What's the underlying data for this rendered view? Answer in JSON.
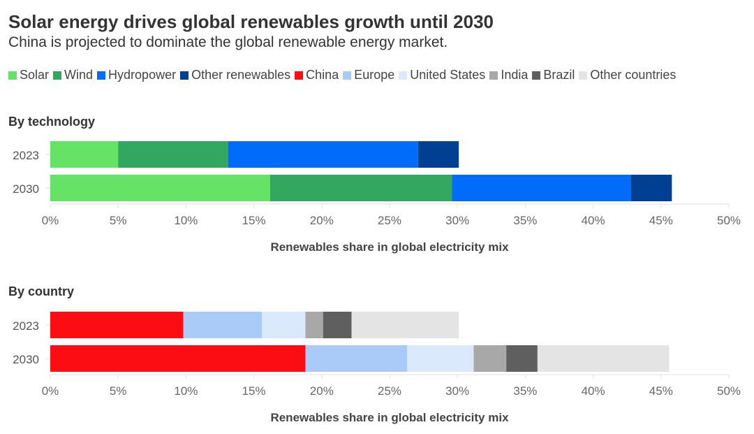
{
  "title": "Solar energy drives global renewables growth until 2030",
  "subtitle": "China is projected to dominate the global renewable energy market.",
  "legend": [
    {
      "name": "Solar",
      "color": "#66e266"
    },
    {
      "name": "Wind",
      "color": "#33a660"
    },
    {
      "name": "Hydropower",
      "color": "#006cf9"
    },
    {
      "name": "Other renewables",
      "color": "#003f91"
    },
    {
      "name": "China",
      "color": "#fc0d13"
    },
    {
      "name": "Europe",
      "color": "#aacbf8"
    },
    {
      "name": "United States",
      "color": "#dae9fc"
    },
    {
      "name": "India",
      "color": "#a8a8a8"
    },
    {
      "name": "Brazil",
      "color": "#5f5f5f"
    },
    {
      "name": "Other countries",
      "color": "#e4e4e4"
    }
  ],
  "chart_data": [
    {
      "type": "bar",
      "orientation": "horizontal",
      "stacked": true,
      "title": "By technology",
      "categories": [
        "2023",
        "2030"
      ],
      "xlabel": "Renewables share in global electricity mix",
      "xlim": [
        0,
        50
      ],
      "xticks": [
        "0%",
        "5%",
        "10%",
        "15%",
        "20%",
        "25%",
        "30%",
        "35%",
        "40%",
        "45%",
        "50%"
      ],
      "series": [
        {
          "name": "Solar",
          "color": "#66e266",
          "values": [
            5.0,
            16.2
          ]
        },
        {
          "name": "Wind",
          "color": "#33a660",
          "values": [
            8.1,
            13.4
          ]
        },
        {
          "name": "Hydropower",
          "color": "#006cf9",
          "values": [
            14.0,
            13.2
          ]
        },
        {
          "name": "Other renewables",
          "color": "#003f91",
          "values": [
            3.0,
            3.0
          ]
        }
      ]
    },
    {
      "type": "bar",
      "orientation": "horizontal",
      "stacked": true,
      "title": "By country",
      "categories": [
        "2023",
        "2030"
      ],
      "xlabel": "Renewables share in global electricity mix",
      "xlim": [
        0,
        50
      ],
      "xticks": [
        "0%",
        "5%",
        "10%",
        "15%",
        "20%",
        "25%",
        "30%",
        "35%",
        "40%",
        "45%",
        "50%"
      ],
      "series": [
        {
          "name": "China",
          "color": "#fc0d13",
          "values": [
            9.8,
            18.8
          ]
        },
        {
          "name": "Europe",
          "color": "#aacbf8",
          "values": [
            5.8,
            7.5
          ]
        },
        {
          "name": "United States",
          "color": "#dae9fc",
          "values": [
            3.2,
            4.9
          ]
        },
        {
          "name": "India",
          "color": "#a8a8a8",
          "values": [
            1.3,
            2.4
          ]
        },
        {
          "name": "Brazil",
          "color": "#5f5f5f",
          "values": [
            2.1,
            2.3
          ]
        },
        {
          "name": "Other countries",
          "color": "#e4e4e4",
          "values": [
            7.9,
            9.7
          ]
        }
      ]
    }
  ]
}
